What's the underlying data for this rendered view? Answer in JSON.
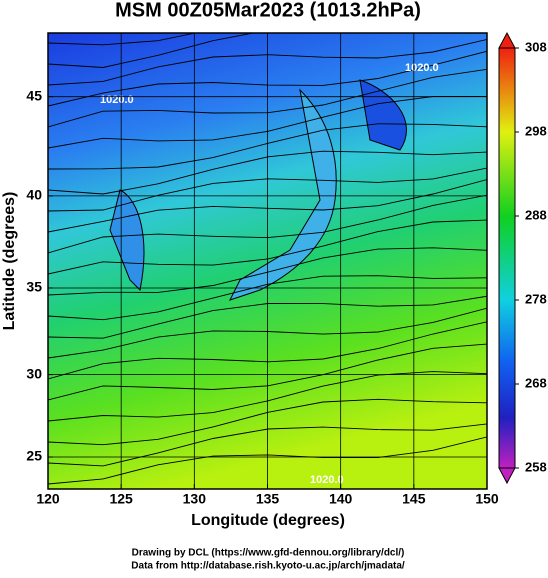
{
  "chart_data": {
    "type": "map",
    "title": "MSM 00Z05Mar2023 (1013.2hPa)",
    "xlabel": "Longitude (degrees)",
    "ylabel": "Latitude  (degrees)",
    "xlim": [
      120,
      150
    ],
    "ylim": [
      23,
      48
    ],
    "yscale": "mercator",
    "xticks": [
      120,
      125,
      130,
      135,
      140,
      145,
      150
    ],
    "yticks": [
      25,
      30,
      35,
      40,
      45
    ],
    "clim": [
      258,
      308
    ],
    "cticks": [
      258,
      268,
      278,
      288,
      298,
      308
    ],
    "grid": true,
    "annotations": [
      "1020.0",
      "1020.0",
      "1020.0"
    ],
    "notes": [
      "Drawing by DCL (https://www.gfd-dennou.org/library/dcl/)",
      "Data from http://database.rish.kyoto-u.ac.jp/arch/jmadata/"
    ]
  }
}
